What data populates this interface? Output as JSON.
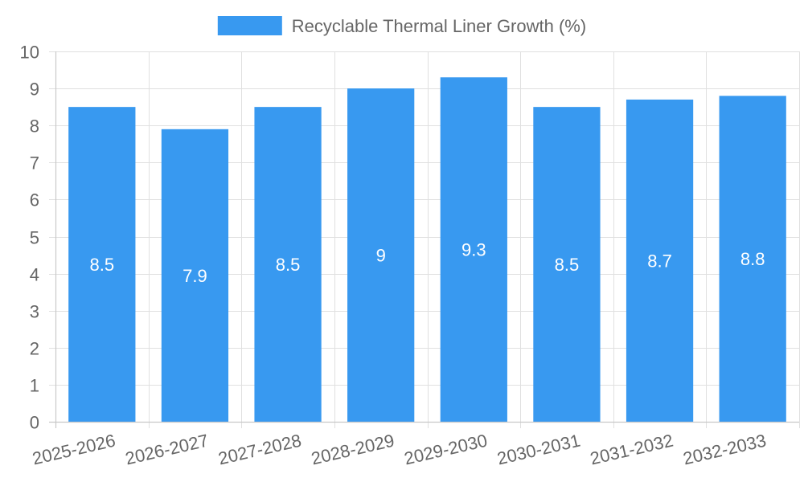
{
  "chart_data": {
    "type": "bar",
    "title": "",
    "xlabel": "",
    "ylabel": "",
    "categories": [
      "2025-2026",
      "2026-2027",
      "2027-2028",
      "2028-2029",
      "2029-2030",
      "2030-2031",
      "2031-2032",
      "2032-2033"
    ],
    "series": [
      {
        "name": "Recyclable Thermal Liner Growth (%)",
        "values": [
          8.5,
          7.9,
          8.5,
          9,
          9.3,
          8.5,
          8.7,
          8.8
        ],
        "color": "#3899f0"
      }
    ],
    "data_labels": [
      "8.5",
      "7.9",
      "8.5",
      "9",
      "9.3",
      "8.5",
      "8.7",
      "8.8"
    ],
    "ylim": [
      0,
      10
    ],
    "yticks": [
      "0",
      "1",
      "2",
      "3",
      "4",
      "5",
      "6",
      "7",
      "8",
      "9",
      "10"
    ],
    "grid": true,
    "legend_position": "top-center"
  },
  "colors": {
    "bar": "#3899f0",
    "grid": "#e0e0e0",
    "axis": "#c8c8c8",
    "tick_text": "#666666",
    "data_label_text": "#ffffff"
  }
}
